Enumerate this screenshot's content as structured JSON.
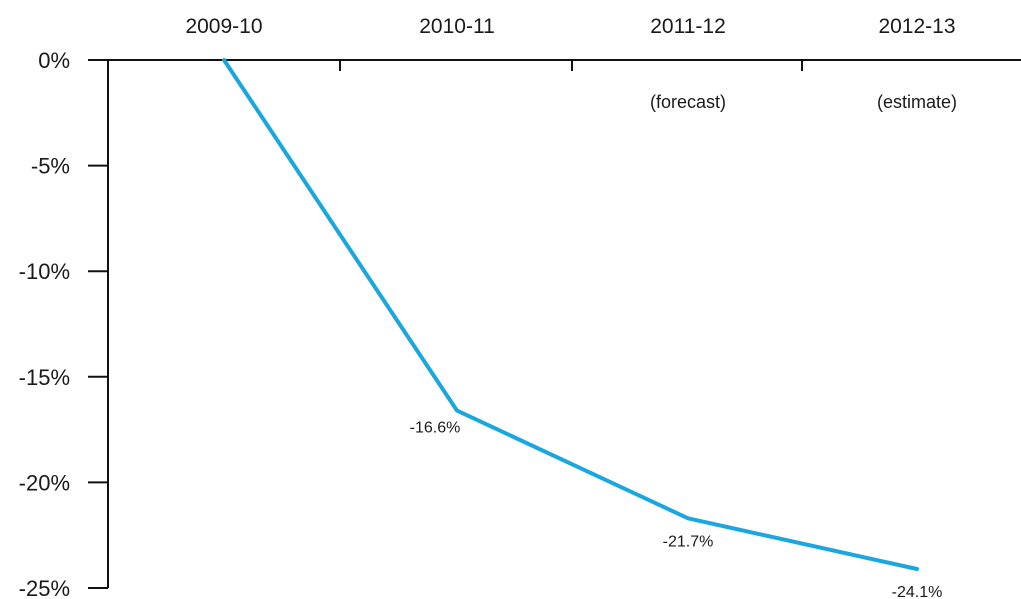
{
  "chart_data": {
    "type": "line",
    "categories": [
      "2009-10",
      "2010-11",
      "2011-12",
      "2012-13"
    ],
    "category_notes": [
      "",
      "",
      "(forecast)",
      "(estimate)"
    ],
    "series": [
      {
        "values": [
          0,
          -16.6,
          -21.7,
          -24.1
        ],
        "color": "#1aa7e0"
      }
    ],
    "data_labels": [
      "",
      "-16.6%",
      "-21.7%",
      "-24.1%"
    ],
    "y_ticks": [
      0,
      -5,
      -10,
      -15,
      -20,
      -25
    ],
    "y_tick_labels": [
      "0%",
      "-5%",
      "-10%",
      "-15%",
      "-20%",
      "-25%"
    ],
    "ylim": [
      -25,
      0
    ],
    "x_axis_position": "top",
    "grid": false,
    "title": "",
    "xlabel": "",
    "ylabel": ""
  }
}
